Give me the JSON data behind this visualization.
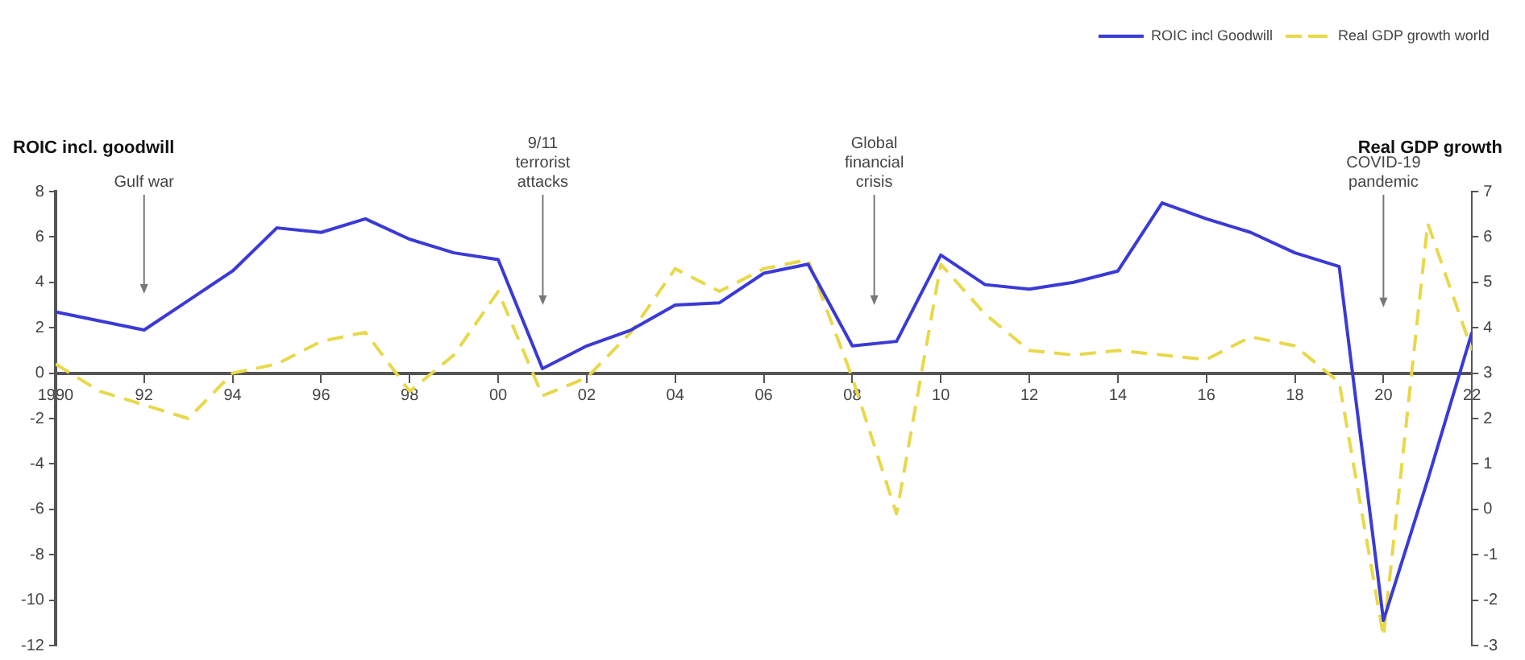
{
  "chart_data": {
    "type": "line",
    "ylabel": "ROIC incl. goodwill",
    "y2label": "Real GDP growth",
    "x": [
      1990,
      1991,
      1992,
      1993,
      1994,
      1995,
      1996,
      1997,
      1998,
      1999,
      2000,
      2001,
      2002,
      2003,
      2004,
      2005,
      2006,
      2007,
      2008,
      2009,
      2010,
      2011,
      2012,
      2013,
      2014,
      2015,
      2016,
      2017,
      2018,
      2019,
      2020,
      2021,
      2022
    ],
    "series": [
      {
        "name": "ROIC incl Goodwill",
        "color": "#3a3ad6",
        "line_style": "solid",
        "values": [
          2.7,
          2.3,
          1.9,
          3.2,
          4.5,
          6.4,
          6.2,
          6.8,
          5.9,
          5.3,
          5.0,
          0.2,
          1.2,
          1.9,
          3.0,
          3.1,
          4.4,
          4.8,
          1.2,
          1.4,
          5.2,
          3.9,
          3.7,
          4.0,
          4.5,
          7.5,
          6.8,
          6.2,
          5.3,
          4.7,
          -10.9,
          -4.7,
          1.8
        ]
      },
      {
        "name": "Real GDP growth world",
        "color": "#e8d84a",
        "line_style": "dashed",
        "axis": "y2",
        "values": [
          3.2,
          2.6,
          2.3,
          2.0,
          3.0,
          3.2,
          3.7,
          3.9,
          2.6,
          3.4,
          4.8,
          2.5,
          2.9,
          3.9,
          5.3,
          4.8,
          5.3,
          5.5,
          2.9,
          -0.1,
          5.4,
          4.3,
          3.5,
          3.4,
          3.5,
          3.4,
          3.3,
          3.8,
          3.6,
          2.8,
          -2.8,
          6.3,
          3.5
        ]
      }
    ],
    "xlim": [
      1990,
      2022
    ],
    "xticks": [
      {
        "value": 1990,
        "label": "1990"
      },
      {
        "value": 1992,
        "label": "92"
      },
      {
        "value": 1994,
        "label": "94"
      },
      {
        "value": 1996,
        "label": "96"
      },
      {
        "value": 1998,
        "label": "98"
      },
      {
        "value": 2000,
        "label": "00"
      },
      {
        "value": 2002,
        "label": "02"
      },
      {
        "value": 2004,
        "label": "04"
      },
      {
        "value": 2006,
        "label": "06"
      },
      {
        "value": 2008,
        "label": "08"
      },
      {
        "value": 2010,
        "label": "10"
      },
      {
        "value": 2012,
        "label": "12"
      },
      {
        "value": 2014,
        "label": "14"
      },
      {
        "value": 2016,
        "label": "16"
      },
      {
        "value": 2018,
        "label": "18"
      },
      {
        "value": 2020,
        "label": "20"
      },
      {
        "value": 2022,
        "label": "22"
      }
    ],
    "ylim": [
      -12,
      8
    ],
    "yticks": [
      -12,
      -10,
      -8,
      -6,
      -4,
      -2,
      0,
      2,
      4,
      6,
      8
    ],
    "y2lim": [
      -3,
      7
    ],
    "y2ticks": [
      -3,
      -2,
      -1,
      0,
      1,
      2,
      3,
      4,
      5,
      6,
      7
    ],
    "annotations": [
      "Gulf war",
      "9/11\nterrorist\nattacks",
      "Global\nfinancial\ncrisis",
      "COVID-19\npandemic"
    ],
    "grid": false,
    "legend": "top right",
    "marker": "none"
  }
}
